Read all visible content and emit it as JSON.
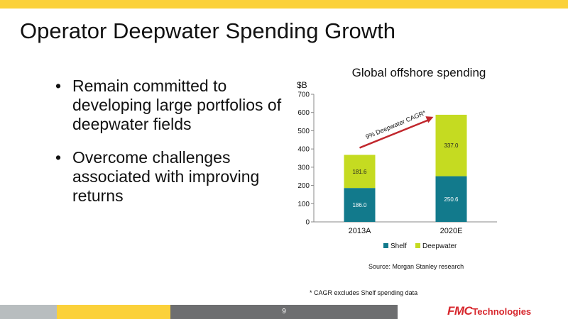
{
  "slide": {
    "title": "Operator Deepwater Spending Growth",
    "bullets": [
      "Remain committed to developing large portfolios of deepwater fields",
      "Overcome challenges associated with improving returns"
    ],
    "bullet_char": "•",
    "source": "Source:  Morgan Stanley research",
    "footnote": "* CAGR excludes Shelf spending data",
    "page_number": "9",
    "logo_fmc": "FMC",
    "logo_tech": "Technologies"
  },
  "colors": {
    "accent_yellow": "#FBD13A",
    "footer_gray": "#6D6E70",
    "footer_light": "#B8BDBF",
    "logo_red": "#D7272D",
    "arrow_red": "#C1272D"
  },
  "chart_data": {
    "type": "bar",
    "stacked": true,
    "title": "Global offshore spending",
    "ylabel": "$B",
    "categories": [
      "2013A",
      "2020E"
    ],
    "series": [
      {
        "name": "Shelf",
        "values": [
          186.0,
          250.6
        ],
        "labels": [
          "186.0",
          "250.6"
        ],
        "color": "#127A8C",
        "label_color": "#ffffff"
      },
      {
        "name": "Deepwater",
        "values": [
          181.6,
          337.0
        ],
        "labels": [
          "181.6",
          "337.0"
        ],
        "color": "#C5DB21",
        "label_color": "#222222"
      }
    ],
    "ylim": [
      0,
      700
    ],
    "yticks": [
      "0",
      "100",
      "200",
      "300",
      "400",
      "500",
      "600",
      "700"
    ],
    "grid": false,
    "legend_position": "bottom",
    "annotation": "9% Deepwater CAGR*"
  }
}
